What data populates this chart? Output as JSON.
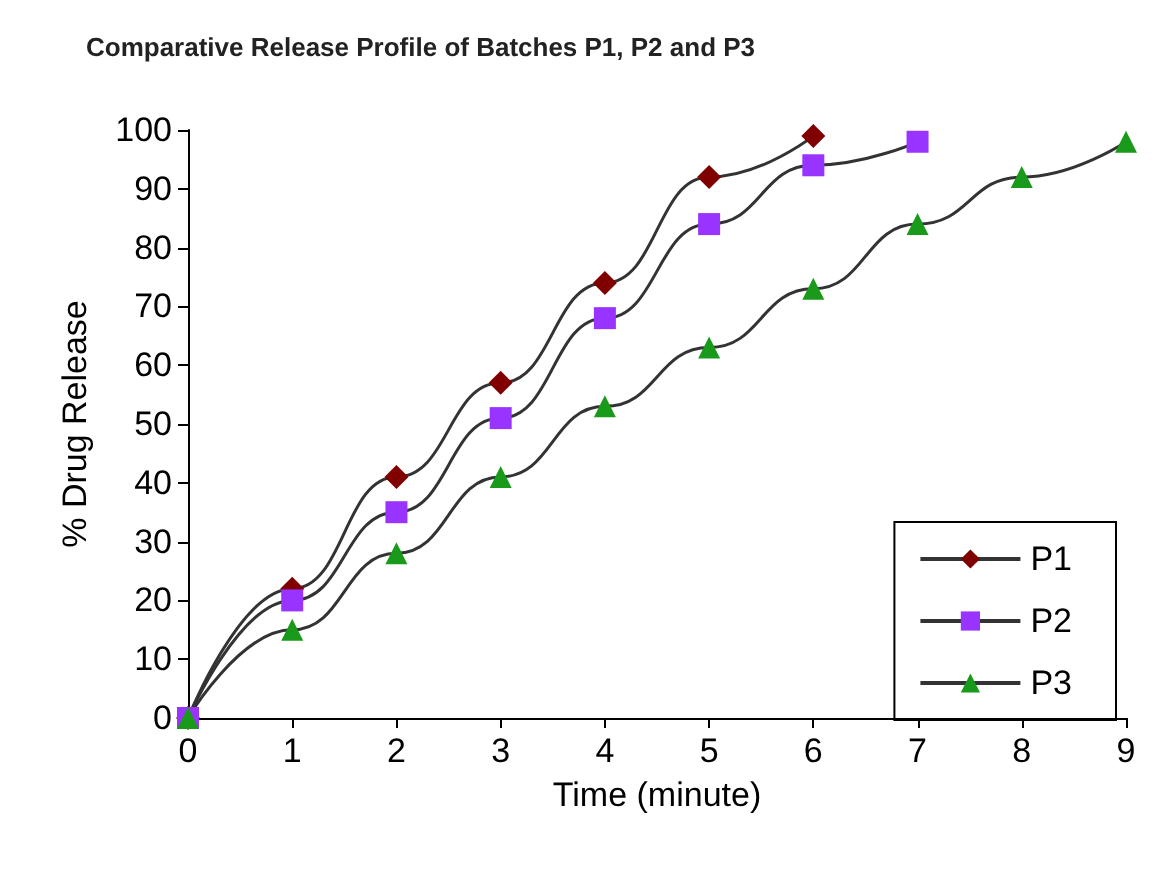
{
  "chart_data": {
    "type": "line",
    "title": "Comparative Release Profile of Batches P1, P2 and P3",
    "xlabel": "Time (minute)",
    "ylabel": "% Drug Release",
    "xlim": [
      0,
      9
    ],
    "xticks": [
      0,
      1,
      2,
      3,
      4,
      5,
      6,
      7,
      8,
      9
    ],
    "ylim": [
      0,
      100
    ],
    "yticks": [
      0,
      10,
      20,
      30,
      40,
      50,
      60,
      70,
      80,
      90,
      100
    ],
    "grid": false,
    "legend": "bottom right",
    "series": [
      {
        "name": "P1",
        "color": "#800000",
        "marker": "diamond",
        "x": [
          0,
          1,
          2,
          3,
          4,
          5,
          6
        ],
        "values": [
          0,
          22,
          41,
          57,
          74,
          92,
          99
        ]
      },
      {
        "name": "P2",
        "color": "#9933ff",
        "marker": "square",
        "x": [
          0,
          1,
          2,
          3,
          4,
          5,
          6,
          7
        ],
        "values": [
          0,
          20,
          35,
          51,
          68,
          84,
          94,
          98
        ]
      },
      {
        "name": "P3",
        "color": "#1a9a1a",
        "marker": "triangle",
        "x": [
          0,
          1,
          2,
          3,
          4,
          5,
          6,
          7,
          8,
          9
        ],
        "values": [
          0,
          15,
          28,
          41,
          53,
          63,
          73,
          84,
          92,
          98
        ]
      }
    ]
  }
}
